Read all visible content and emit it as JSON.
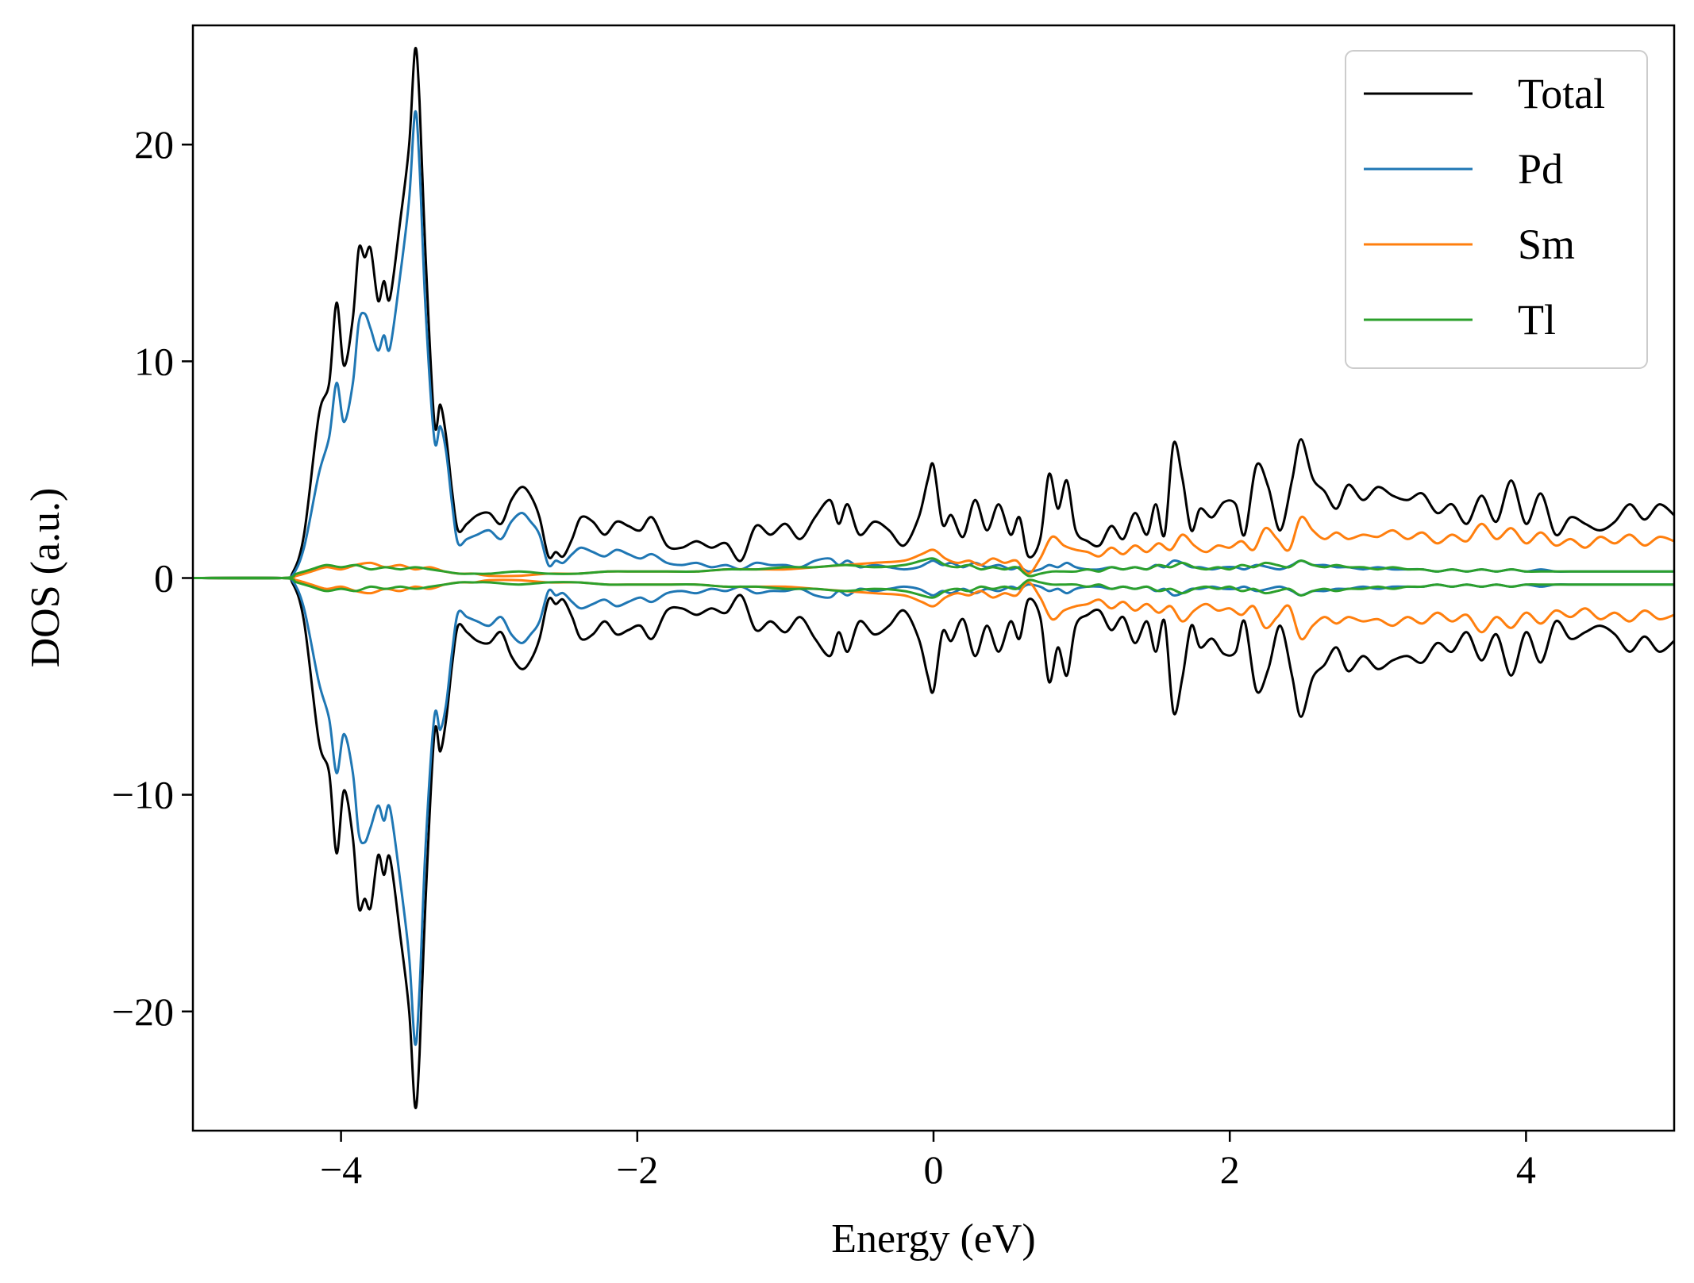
{
  "chart_data": {
    "type": "line",
    "xlabel": "Energy (eV)",
    "ylabel": "DOS (a.u.)",
    "xlim": [
      -5,
      5
    ],
    "ylim": [
      -25.5,
      25.5
    ],
    "x_ticks": [
      -4,
      -2,
      0,
      2,
      4
    ],
    "x_tick_labels": [
      "−4",
      "−2",
      "0",
      "2",
      "4"
    ],
    "y_ticks": [
      20,
      10,
      0,
      -10,
      -20
    ],
    "y_tick_labels": [
      "20",
      "10",
      "0",
      "−10",
      "−20"
    ],
    "grid": false,
    "legend_position": "top-right",
    "mirror_about_zero": true,
    "series": [
      {
        "name": "Total",
        "color": "#000000",
        "x": [
          -5.0,
          -4.4,
          -4.33,
          -4.25,
          -4.15,
          -4.08,
          -4.03,
          -3.98,
          -3.92,
          -3.88,
          -3.84,
          -3.8,
          -3.75,
          -3.71,
          -3.67,
          -3.6,
          -3.54,
          -3.5,
          -3.47,
          -3.43,
          -3.37,
          -3.33,
          -3.29,
          -3.25,
          -3.21,
          -3.15,
          -3.08,
          -3.0,
          -2.92,
          -2.85,
          -2.78,
          -2.72,
          -2.66,
          -2.6,
          -2.55,
          -2.5,
          -2.44,
          -2.38,
          -2.3,
          -2.22,
          -2.14,
          -2.06,
          -1.98,
          -1.9,
          -1.8,
          -1.7,
          -1.6,
          -1.5,
          -1.4,
          -1.3,
          -1.2,
          -1.1,
          -1.0,
          -0.9,
          -0.8,
          -0.7,
          -0.64,
          -0.58,
          -0.5,
          -0.4,
          -0.3,
          -0.2,
          -0.1,
          -0.04,
          0.0,
          0.06,
          0.12,
          0.2,
          0.28,
          0.36,
          0.44,
          0.52,
          0.58,
          0.64,
          0.72,
          0.78,
          0.84,
          0.9,
          0.96,
          1.04,
          1.12,
          1.2,
          1.28,
          1.36,
          1.44,
          1.5,
          1.56,
          1.62,
          1.68,
          1.74,
          1.8,
          1.88,
          1.96,
          2.04,
          2.1,
          2.18,
          2.26,
          2.34,
          2.42,
          2.48,
          2.56,
          2.64,
          2.72,
          2.8,
          2.9,
          3.0,
          3.1,
          3.2,
          3.3,
          3.4,
          3.5,
          3.6,
          3.7,
          3.8,
          3.9,
          4.0,
          4.1,
          4.2,
          4.3,
          4.4,
          4.5,
          4.6,
          4.7,
          4.8,
          4.9,
          5.0
        ],
        "values": [
          0.0,
          0.0,
          0.2,
          2.0,
          7.5,
          9.0,
          12.7,
          9.8,
          12.0,
          15.2,
          14.8,
          15.2,
          12.8,
          13.7,
          12.9,
          16.5,
          20.0,
          24.4,
          22.0,
          15.0,
          7.2,
          8.0,
          6.5,
          4.0,
          2.2,
          2.5,
          2.9,
          3.0,
          2.5,
          3.6,
          4.2,
          3.8,
          2.8,
          1.0,
          1.2,
          1.0,
          1.8,
          2.8,
          2.6,
          2.0,
          2.6,
          2.4,
          2.2,
          2.8,
          1.5,
          1.4,
          1.7,
          1.4,
          1.6,
          0.8,
          2.4,
          2.0,
          2.5,
          1.8,
          2.8,
          3.6,
          2.5,
          3.4,
          2.0,
          2.6,
          2.2,
          1.5,
          2.8,
          4.5,
          5.2,
          2.5,
          2.9,
          1.9,
          3.6,
          2.2,
          3.4,
          2.0,
          2.8,
          1.0,
          1.8,
          4.8,
          3.2,
          4.5,
          2.2,
          1.7,
          1.5,
          2.4,
          1.8,
          3.0,
          2.0,
          3.4,
          2.0,
          6.2,
          4.6,
          2.2,
          3.2,
          2.8,
          3.5,
          3.4,
          2.0,
          5.2,
          4.2,
          2.2,
          4.5,
          6.4,
          4.6,
          4.0,
          3.2,
          4.3,
          3.6,
          4.2,
          3.8,
          3.6,
          3.9,
          3.0,
          3.4,
          2.5,
          3.8,
          2.6,
          4.5,
          2.5,
          3.9,
          2.0,
          2.8,
          2.5,
          2.2,
          2.6,
          3.4,
          2.7,
          3.4,
          2.9
        ]
      },
      {
        "name": "Pd",
        "color": "#1f77b4",
        "x": [
          -5.0,
          -4.4,
          -4.33,
          -4.25,
          -4.15,
          -4.08,
          -4.03,
          -3.98,
          -3.92,
          -3.88,
          -3.84,
          -3.8,
          -3.75,
          -3.71,
          -3.67,
          -3.6,
          -3.54,
          -3.5,
          -3.47,
          -3.43,
          -3.37,
          -3.33,
          -3.29,
          -3.25,
          -3.21,
          -3.15,
          -3.08,
          -3.0,
          -2.92,
          -2.85,
          -2.78,
          -2.72,
          -2.66,
          -2.6,
          -2.55,
          -2.5,
          -2.44,
          -2.38,
          -2.3,
          -2.22,
          -2.14,
          -2.06,
          -1.98,
          -1.9,
          -1.8,
          -1.7,
          -1.6,
          -1.5,
          -1.4,
          -1.3,
          -1.2,
          -1.1,
          -1.0,
          -0.9,
          -0.8,
          -0.7,
          -0.64,
          -0.58,
          -0.5,
          -0.4,
          -0.3,
          -0.2,
          -0.1,
          -0.04,
          0.0,
          0.06,
          0.12,
          0.2,
          0.28,
          0.36,
          0.44,
          0.52,
          0.58,
          0.64,
          0.72,
          0.78,
          0.84,
          0.9,
          0.96,
          1.04,
          1.12,
          1.2,
          1.28,
          1.36,
          1.44,
          1.5,
          1.56,
          1.62,
          1.68,
          1.74,
          1.8,
          1.88,
          1.96,
          2.04,
          2.1,
          2.18,
          2.26,
          2.34,
          2.42,
          2.48,
          2.56,
          2.64,
          2.72,
          2.8,
          2.9,
          3.0,
          3.1,
          3.2,
          3.3,
          3.4,
          3.5,
          3.6,
          3.7,
          3.8,
          3.9,
          4.0,
          4.1,
          4.2,
          4.3,
          4.4,
          4.5,
          4.6,
          4.7,
          4.8,
          4.9,
          5.0
        ],
        "values": [
          0.0,
          0.0,
          0.1,
          1.4,
          4.8,
          6.5,
          9.0,
          7.2,
          9.0,
          11.8,
          12.2,
          11.5,
          10.5,
          11.2,
          10.6,
          14.0,
          17.5,
          21.5,
          19.0,
          12.5,
          6.4,
          7.0,
          5.8,
          3.4,
          1.6,
          1.8,
          2.0,
          2.2,
          1.8,
          2.6,
          3.0,
          2.6,
          2.0,
          0.6,
          0.8,
          0.7,
          1.1,
          1.4,
          1.2,
          1.0,
          1.3,
          1.1,
          0.9,
          1.1,
          0.7,
          0.6,
          0.7,
          0.5,
          0.6,
          0.4,
          0.7,
          0.6,
          0.6,
          0.5,
          0.8,
          0.9,
          0.6,
          0.8,
          0.5,
          0.6,
          0.5,
          0.4,
          0.5,
          0.7,
          0.8,
          0.6,
          0.7,
          0.5,
          0.7,
          0.5,
          0.6,
          0.4,
          0.5,
          0.3,
          0.4,
          0.6,
          0.5,
          0.7,
          0.5,
          0.4,
          0.4,
          0.5,
          0.4,
          0.5,
          0.4,
          0.6,
          0.5,
          0.8,
          0.7,
          0.5,
          0.5,
          0.4,
          0.5,
          0.5,
          0.4,
          0.6,
          0.5,
          0.4,
          0.6,
          0.8,
          0.6,
          0.6,
          0.5,
          0.5,
          0.4,
          0.5,
          0.4,
          0.4,
          0.4,
          0.3,
          0.4,
          0.3,
          0.4,
          0.3,
          0.4,
          0.3,
          0.4,
          0.3,
          0.3,
          0.3,
          0.3,
          0.3,
          0.3,
          0.3,
          0.3,
          0.3
        ]
      },
      {
        "name": "Sm",
        "color": "#ff7f0e",
        "x": [
          -5.0,
          -4.4,
          -4.3,
          -4.2,
          -4.1,
          -4.0,
          -3.9,
          -3.8,
          -3.7,
          -3.6,
          -3.5,
          -3.4,
          -3.3,
          -3.2,
          -3.1,
          -3.0,
          -2.8,
          -2.6,
          -2.4,
          -2.2,
          -2.0,
          -1.8,
          -1.6,
          -1.4,
          -1.2,
          -1.0,
          -0.8,
          -0.6,
          -0.4,
          -0.2,
          -0.08,
          0.0,
          0.08,
          0.16,
          0.24,
          0.32,
          0.4,
          0.48,
          0.56,
          0.64,
          0.72,
          0.8,
          0.88,
          0.96,
          1.04,
          1.12,
          1.2,
          1.28,
          1.36,
          1.44,
          1.52,
          1.6,
          1.68,
          1.76,
          1.84,
          1.92,
          2.0,
          2.08,
          2.16,
          2.24,
          2.32,
          2.4,
          2.48,
          2.56,
          2.64,
          2.72,
          2.8,
          2.9,
          3.0,
          3.1,
          3.2,
          3.3,
          3.4,
          3.5,
          3.6,
          3.7,
          3.8,
          3.9,
          4.0,
          4.1,
          4.2,
          4.3,
          4.4,
          4.5,
          4.6,
          4.7,
          4.8,
          4.9,
          5.0
        ],
        "values": [
          0.0,
          0.0,
          0.1,
          0.3,
          0.5,
          0.4,
          0.6,
          0.7,
          0.5,
          0.6,
          0.4,
          0.5,
          0.3,
          0.2,
          0.2,
          0.1,
          0.1,
          0.2,
          0.2,
          0.3,
          0.3,
          0.3,
          0.3,
          0.4,
          0.4,
          0.4,
          0.5,
          0.6,
          0.7,
          0.8,
          1.1,
          1.3,
          0.9,
          0.7,
          0.8,
          0.6,
          0.9,
          0.7,
          0.8,
          0.2,
          0.9,
          1.9,
          1.5,
          1.3,
          1.2,
          1.0,
          1.4,
          1.1,
          1.5,
          1.2,
          1.6,
          1.3,
          2.0,
          1.5,
          1.2,
          1.5,
          1.4,
          1.7,
          1.3,
          2.3,
          1.8,
          1.3,
          2.8,
          2.2,
          1.8,
          2.1,
          1.8,
          2.0,
          1.9,
          2.2,
          1.8,
          2.1,
          1.6,
          2.0,
          1.7,
          2.5,
          1.8,
          2.3,
          1.6,
          2.1,
          1.5,
          1.8,
          1.4,
          1.9,
          1.6,
          2.0,
          1.5,
          1.9,
          1.7
        ]
      },
      {
        "name": "Tl",
        "color": "#2ca02c",
        "x": [
          -5.0,
          -4.4,
          -4.3,
          -4.2,
          -4.1,
          -4.0,
          -3.9,
          -3.8,
          -3.7,
          -3.6,
          -3.5,
          -3.4,
          -3.3,
          -3.2,
          -3.1,
          -3.0,
          -2.8,
          -2.6,
          -2.4,
          -2.2,
          -2.0,
          -1.8,
          -1.6,
          -1.4,
          -1.2,
          -1.0,
          -0.8,
          -0.6,
          -0.4,
          -0.2,
          -0.08,
          0.0,
          0.08,
          0.16,
          0.24,
          0.32,
          0.4,
          0.48,
          0.56,
          0.64,
          0.72,
          0.8,
          0.88,
          0.96,
          1.04,
          1.12,
          1.2,
          1.28,
          1.36,
          1.44,
          1.52,
          1.6,
          1.68,
          1.76,
          1.84,
          1.92,
          2.0,
          2.08,
          2.16,
          2.24,
          2.32,
          2.4,
          2.48,
          2.56,
          2.64,
          2.72,
          2.8,
          2.9,
          3.0,
          3.1,
          3.2,
          3.3,
          3.4,
          3.5,
          3.6,
          3.7,
          3.8,
          3.9,
          4.0,
          4.1,
          4.2,
          4.3,
          4.4,
          4.5,
          4.6,
          4.7,
          4.8,
          4.9,
          5.0
        ],
        "values": [
          0.0,
          0.0,
          0.2,
          0.4,
          0.6,
          0.5,
          0.6,
          0.4,
          0.5,
          0.4,
          0.5,
          0.4,
          0.3,
          0.2,
          0.2,
          0.2,
          0.3,
          0.2,
          0.2,
          0.3,
          0.3,
          0.3,
          0.3,
          0.4,
          0.4,
          0.5,
          0.5,
          0.6,
          0.5,
          0.6,
          0.8,
          0.9,
          0.6,
          0.5,
          0.6,
          0.4,
          0.5,
          0.4,
          0.5,
          0.1,
          0.2,
          0.3,
          0.3,
          0.3,
          0.4,
          0.3,
          0.5,
          0.4,
          0.5,
          0.4,
          0.6,
          0.5,
          0.7,
          0.5,
          0.4,
          0.5,
          0.4,
          0.6,
          0.5,
          0.7,
          0.6,
          0.5,
          0.8,
          0.6,
          0.5,
          0.6,
          0.5,
          0.5,
          0.4,
          0.5,
          0.4,
          0.4,
          0.3,
          0.4,
          0.3,
          0.4,
          0.3,
          0.4,
          0.3,
          0.3,
          0.3,
          0.3,
          0.3,
          0.3,
          0.3,
          0.3,
          0.3,
          0.3,
          0.3
        ]
      }
    ]
  }
}
